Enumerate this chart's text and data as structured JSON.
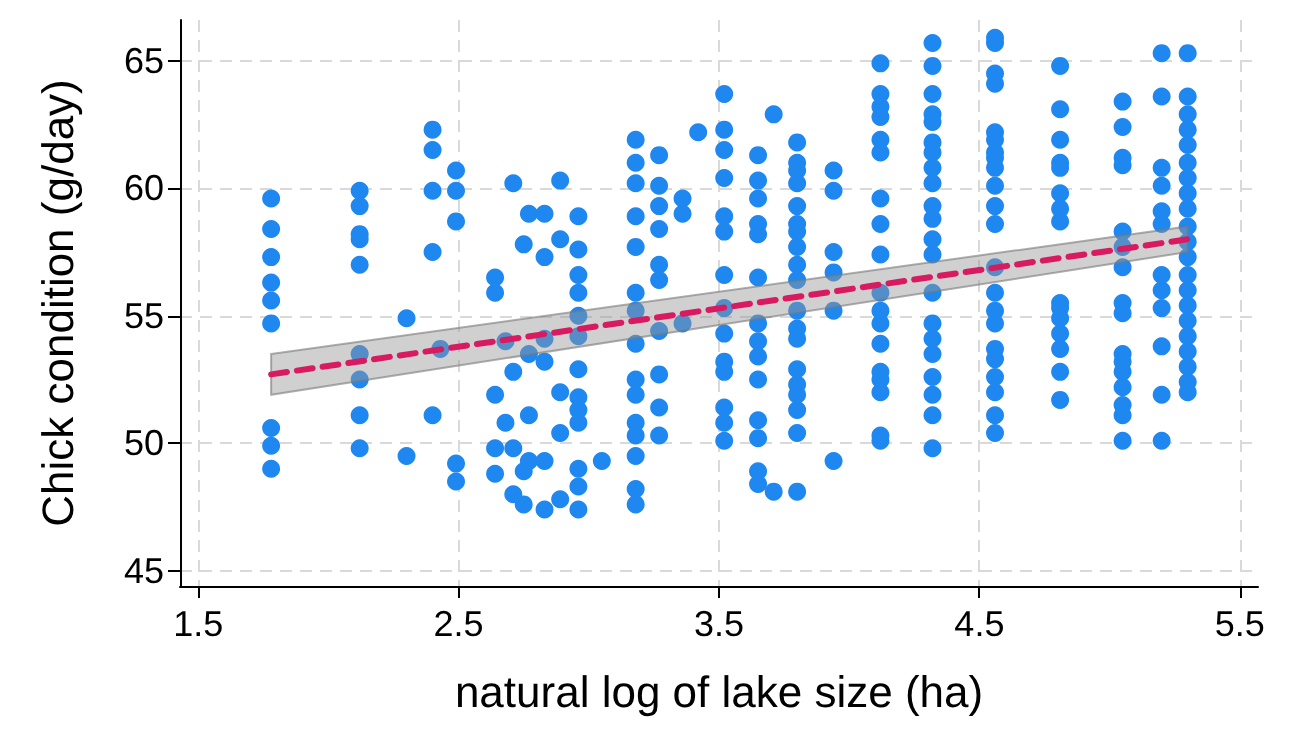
{
  "chart_data": {
    "type": "scatter",
    "xlabel": "natural log of lake size (ha)",
    "ylabel": "Chick condition (g/day)",
    "xlim": [
      1.43,
      5.57
    ],
    "ylim": [
      44.4,
      66.6
    ],
    "xticks": [
      1.5,
      2.5,
      3.5,
      4.5,
      5.5
    ],
    "yticks": [
      45,
      50,
      55,
      60,
      65
    ],
    "grid": true,
    "series": [
      {
        "color": "#1e88f0",
        "marker": "circle",
        "x": [
          1.78,
          1.78,
          1.78,
          1.78,
          1.78,
          1.78,
          1.78,
          1.78,
          1.78,
          2.12,
          2.12,
          2.12,
          2.12,
          2.12,
          2.12,
          2.12,
          2.12,
          2.12,
          2.3,
          2.3,
          2.4,
          2.4,
          2.4,
          2.4,
          2.4,
          2.43,
          2.49,
          2.49,
          2.49,
          2.49,
          2.49,
          2.64,
          2.64,
          2.64,
          2.64,
          2.64,
          2.68,
          2.68,
          2.71,
          2.71,
          2.71,
          2.71,
          2.75,
          2.75,
          2.75,
          2.77,
          2.77,
          2.77,
          2.77,
          2.83,
          2.83,
          2.83,
          2.83,
          2.83,
          2.83,
          2.89,
          2.89,
          2.89,
          2.89,
          2.89,
          2.96,
          2.96,
          2.96,
          2.96,
          2.96,
          2.96,
          2.96,
          2.96,
          2.96,
          2.96,
          2.96,
          2.96,
          2.96,
          3.05,
          3.18,
          3.18,
          3.18,
          3.18,
          3.18,
          3.18,
          3.18,
          3.18,
          3.18,
          3.18,
          3.18,
          3.18,
          3.18,
          3.18,
          3.18,
          3.27,
          3.27,
          3.27,
          3.27,
          3.27,
          3.27,
          3.27,
          3.27,
          3.27,
          3.27,
          3.36,
          3.36,
          3.36,
          3.42,
          3.52,
          3.52,
          3.52,
          3.52,
          3.52,
          3.52,
          3.52,
          3.52,
          3.52,
          3.52,
          3.52,
          3.52,
          3.52,
          3.52,
          3.65,
          3.65,
          3.65,
          3.65,
          3.65,
          3.65,
          3.65,
          3.65,
          3.65,
          3.65,
          3.65,
          3.65,
          3.65,
          3.65,
          3.71,
          3.71,
          3.8,
          3.8,
          3.8,
          3.8,
          3.8,
          3.8,
          3.8,
          3.8,
          3.8,
          3.8,
          3.8,
          3.8,
          3.8,
          3.8,
          3.8,
          3.8,
          3.8,
          3.8,
          3.8,
          3.94,
          3.94,
          3.94,
          3.94,
          3.94,
          3.94,
          4.12,
          4.12,
          4.12,
          4.12,
          4.12,
          4.12,
          4.12,
          4.12,
          4.12,
          4.12,
          4.12,
          4.12,
          4.12,
          4.12,
          4.12,
          4.12,
          4.12,
          4.12,
          4.32,
          4.32,
          4.32,
          4.32,
          4.32,
          4.32,
          4.32,
          4.32,
          4.32,
          4.32,
          4.32,
          4.32,
          4.32,
          4.32,
          4.32,
          4.32,
          4.32,
          4.32,
          4.32,
          4.32,
          4.32,
          4.56,
          4.56,
          4.56,
          4.56,
          4.56,
          4.56,
          4.56,
          4.56,
          4.56,
          4.56,
          4.56,
          4.56,
          4.56,
          4.56,
          4.56,
          4.56,
          4.56,
          4.56,
          4.56,
          4.56,
          4.56,
          4.56,
          4.81,
          4.81,
          4.81,
          4.81,
          4.81,
          4.81,
          4.81,
          4.81,
          4.81,
          4.81,
          4.81,
          4.81,
          4.81,
          4.81,
          4.81,
          5.05,
          5.05,
          5.05,
          5.05,
          5.05,
          5.05,
          5.05,
          5.05,
          5.05,
          5.05,
          5.05,
          5.05,
          5.05,
          5.05,
          5.05,
          5.05,
          5.2,
          5.2,
          5.2,
          5.2,
          5.2,
          5.2,
          5.2,
          5.2,
          5.2,
          5.2,
          5.2,
          5.2,
          5.3,
          5.3,
          5.3,
          5.3,
          5.3,
          5.3,
          5.3,
          5.3,
          5.3,
          5.3,
          5.3,
          5.3,
          5.3,
          5.3,
          5.3,
          5.3,
          5.3,
          5.3,
          5.3,
          5.3,
          5.3
        ],
        "values": [
          59.6,
          58.4,
          57.3,
          56.3,
          55.6,
          54.7,
          50.6,
          49.9,
          49.0,
          59.9,
          59.3,
          58.2,
          58.0,
          57.0,
          53.5,
          52.5,
          51.1,
          49.8,
          54.9,
          49.5,
          62.3,
          61.5,
          59.9,
          57.5,
          51.1,
          53.7,
          60.7,
          59.9,
          58.7,
          49.2,
          48.5,
          56.5,
          55.9,
          51.9,
          49.8,
          48.8,
          54.0,
          50.8,
          60.2,
          52.8,
          49.8,
          48.0,
          57.8,
          48.9,
          47.6,
          59.0,
          53.5,
          51.1,
          49.3,
          59.0,
          57.3,
          54.1,
          53.2,
          49.3,
          47.4,
          60.3,
          58.0,
          52.0,
          50.4,
          47.8,
          58.9,
          57.6,
          56.6,
          55.9,
          55.0,
          54.2,
          52.9,
          51.8,
          51.3,
          50.8,
          49.0,
          48.3,
          47.4,
          49.3,
          61.9,
          61.0,
          60.2,
          58.9,
          57.7,
          55.9,
          55.2,
          53.9,
          52.5,
          51.9,
          50.8,
          50.3,
          49.5,
          48.2,
          47.6,
          61.3,
          60.1,
          59.3,
          58.4,
          57.0,
          56.4,
          54.4,
          52.7,
          51.4,
          50.3,
          59.6,
          59.0,
          54.7,
          62.2,
          63.7,
          62.3,
          61.5,
          60.4,
          58.9,
          58.3,
          56.6,
          55.3,
          54.3,
          53.2,
          52.8,
          51.4,
          50.8,
          50.1,
          61.3,
          60.3,
          59.6,
          58.6,
          58.2,
          56.5,
          54.7,
          54.0,
          53.4,
          52.5,
          50.9,
          50.2,
          48.9,
          48.4,
          62.9,
          48.1,
          61.8,
          61.0,
          60.7,
          60.2,
          59.3,
          58.6,
          58.3,
          57.7,
          57.0,
          56.4,
          55.2,
          54.5,
          54.1,
          52.9,
          52.3,
          51.9,
          51.3,
          50.4,
          48.1,
          60.7,
          59.9,
          57.5,
          56.7,
          55.2,
          49.3,
          64.9,
          63.7,
          63.2,
          62.8,
          61.9,
          61.4,
          59.6,
          58.6,
          57.4,
          55.9,
          55.2,
          54.7,
          53.9,
          52.8,
          52.5,
          52.0,
          50.3,
          50.1,
          65.7,
          64.8,
          63.7,
          62.9,
          62.6,
          61.8,
          61.4,
          60.8,
          60.2,
          59.3,
          58.8,
          58.0,
          57.4,
          55.9,
          54.7,
          54.1,
          53.5,
          52.6,
          51.9,
          51.1,
          49.8,
          65.9,
          65.7,
          64.5,
          64.1,
          62.2,
          61.9,
          61.4,
          61.2,
          60.8,
          60.1,
          59.3,
          58.6,
          56.9,
          55.9,
          55.2,
          54.7,
          53.7,
          53.3,
          52.6,
          52.0,
          51.1,
          50.4,
          64.8,
          63.1,
          61.9,
          61.0,
          60.8,
          59.8,
          59.2,
          58.7,
          55.5,
          55.3,
          54.9,
          54.3,
          53.7,
          52.8,
          51.7,
          63.4,
          62.4,
          61.2,
          60.9,
          58.3,
          57.7,
          56.9,
          55.5,
          55.1,
          53.5,
          53.2,
          52.8,
          52.2,
          51.5,
          51.1,
          50.1,
          65.3,
          63.6,
          60.8,
          60.1,
          59.1,
          58.6,
          56.6,
          56.0,
          55.3,
          53.8,
          51.9,
          50.1,
          65.3,
          63.6,
          62.9,
          62.3,
          61.7,
          61.0,
          60.4,
          59.8,
          59.2,
          58.5,
          57.9,
          57.3,
          56.6,
          56.0,
          55.4,
          54.8,
          54.2,
          53.6,
          53.0,
          52.4,
          52.0
        ]
      },
      {
        "type": "line",
        "color": "#d81b60",
        "marker": "none",
        "line_style": "dashed",
        "x": [
          1.78,
          5.3
        ],
        "values": [
          52.7,
          58.0
        ],
        "lower": [
          51.9,
          57.5
        ],
        "upper": [
          53.5,
          58.5
        ]
      }
    ]
  }
}
